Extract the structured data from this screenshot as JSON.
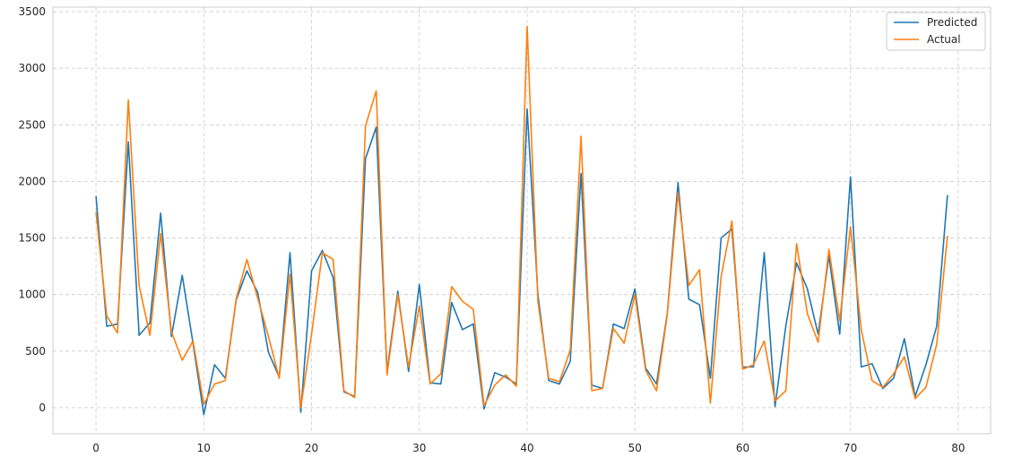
{
  "chart_data": {
    "type": "line",
    "title": "",
    "xlabel": "",
    "ylabel": "",
    "xlim": [
      -4,
      83
    ],
    "ylim": [
      -230,
      3540
    ],
    "xticks": [
      0,
      10,
      20,
      30,
      40,
      50,
      60,
      70,
      80
    ],
    "yticks": [
      0,
      500,
      1000,
      1500,
      2000,
      2500,
      3000,
      3500
    ],
    "grid": true,
    "legend_position": "top-right",
    "x": [
      0,
      1,
      2,
      3,
      4,
      5,
      6,
      7,
      8,
      9,
      10,
      11,
      12,
      13,
      14,
      15,
      16,
      17,
      18,
      19,
      20,
      21,
      22,
      23,
      24,
      25,
      26,
      27,
      28,
      29,
      30,
      31,
      32,
      33,
      34,
      35,
      36,
      37,
      38,
      39,
      40,
      41,
      42,
      43,
      44,
      45,
      46,
      47,
      48,
      49,
      50,
      51,
      52,
      53,
      54,
      55,
      56,
      57,
      58,
      59,
      60,
      61,
      62,
      63,
      64,
      65,
      66,
      67,
      68,
      69,
      70,
      71,
      72,
      73,
      74,
      75,
      76,
      77,
      78,
      79
    ],
    "series": [
      {
        "name": "Predicted",
        "color": "#1f77b4",
        "values": [
          1870,
          720,
          740,
          2350,
          640,
          750,
          1720,
          630,
          1170,
          570,
          -60,
          380,
          260,
          950,
          1210,
          1020,
          490,
          270,
          1370,
          -40,
          1210,
          1390,
          1150,
          140,
          100,
          2200,
          2480,
          320,
          1030,
          320,
          1090,
          220,
          210,
          930,
          690,
          740,
          -10,
          310,
          270,
          210,
          2640,
          1000,
          240,
          210,
          410,
          2070,
          200,
          170,
          740,
          700,
          1050,
          350,
          210,
          830,
          1990,
          960,
          910,
          260,
          1500,
          1580,
          360,
          360,
          1370,
          10,
          720,
          1280,
          1050,
          650,
          1340,
          650,
          2040,
          360,
          390,
          170,
          260,
          610,
          100,
          380,
          720,
          1880
        ]
      },
      {
        "name": "Actual",
        "color": "#ff7f0e",
        "values": [
          1730,
          810,
          660,
          2720,
          1080,
          640,
          1540,
          670,
          420,
          590,
          30,
          210,
          240,
          960,
          1310,
          970,
          630,
          260,
          1180,
          0,
          650,
          1370,
          1310,
          150,
          90,
          2490,
          2800,
          290,
          1000,
          360,
          900,
          210,
          300,
          1070,
          940,
          870,
          20,
          200,
          290,
          190,
          3370,
          940,
          260,
          230,
          510,
          2400,
          150,
          170,
          700,
          570,
          1000,
          330,
          150,
          820,
          1900,
          1080,
          1220,
          40,
          1160,
          1650,
          340,
          380,
          590,
          60,
          150,
          1450,
          830,
          580,
          1400,
          770,
          1600,
          690,
          240,
          180,
          300,
          450,
          80,
          180,
          560,
          1520
        ]
      }
    ]
  }
}
